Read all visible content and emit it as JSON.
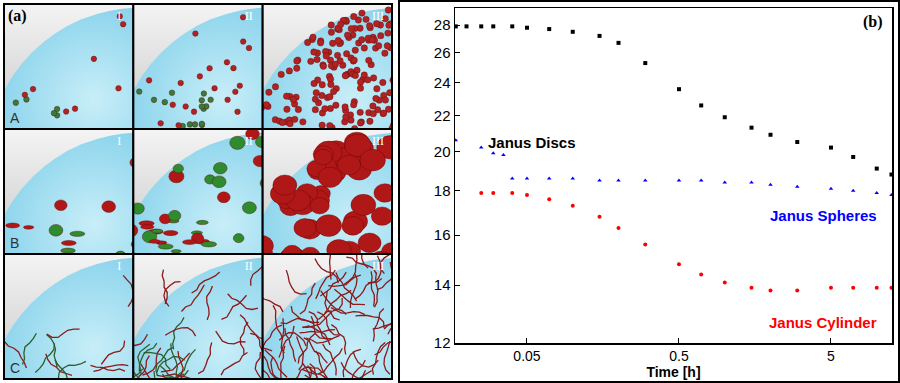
{
  "panel_a": {
    "label": "(a)",
    "rows": [
      "A",
      "B",
      "C"
    ],
    "columns": [
      "I",
      "II",
      "III"
    ]
  },
  "chart_data": {
    "type": "scatter",
    "title": "(b)",
    "x_label": "Time [h]",
    "log": true,
    "grid": false,
    "xlim": [
      0.0168,
      12.6
    ],
    "ylim": [
      12,
      29.3
    ],
    "xticks": [
      0.05,
      0.5,
      5
    ],
    "yticks": [
      12,
      14,
      16,
      18,
      20,
      22,
      24,
      26,
      28
    ],
    "series": [
      {
        "name": "Janus Discs",
        "color": "#000000",
        "marker": "square",
        "x": [
          0.017,
          0.02,
          0.025,
          0.03,
          0.04,
          0.05,
          0.07,
          0.1,
          0.15,
          0.2,
          0.3,
          0.5,
          0.7,
          1,
          1.5,
          2,
          3,
          5,
          7,
          10,
          12.5
        ],
        "values": [
          27.9,
          27.9,
          27.9,
          27.9,
          27.9,
          27.8,
          27.7,
          27.5,
          27.2,
          26.7,
          25.3,
          23.6,
          22.6,
          21.9,
          21.3,
          20.9,
          20.5,
          20.2,
          19.7,
          19.1,
          18.8
        ]
      },
      {
        "name": "Janus Spheres",
        "color": "#0000ff",
        "marker": "triangle-up",
        "x": [
          0.017,
          0.025,
          0.03,
          0.035,
          0.04,
          0.05,
          0.07,
          0.1,
          0.15,
          0.2,
          0.3,
          0.5,
          0.7,
          1,
          1.5,
          2,
          3,
          5,
          7,
          10,
          12.5
        ],
        "values": [
          20.6,
          20.2,
          19.9,
          19.8,
          18.6,
          18.6,
          18.6,
          18.6,
          18.5,
          18.5,
          18.5,
          18.5,
          18.5,
          18.4,
          18.4,
          18.3,
          18.2,
          18.1,
          18.0,
          17.9,
          17.8
        ]
      },
      {
        "name": "Janus Cylinder",
        "color": "#ff0000",
        "marker": "circle",
        "x": [
          0.025,
          0.03,
          0.04,
          0.05,
          0.07,
          0.1,
          0.15,
          0.2,
          0.3,
          0.5,
          0.7,
          1,
          1.5,
          2,
          3,
          5,
          7,
          10,
          12.5
        ],
        "values": [
          17.9,
          17.9,
          17.9,
          17.8,
          17.6,
          17.3,
          16.8,
          16.3,
          15.6,
          14.8,
          14.4,
          14.1,
          13.9,
          13.8,
          13.8,
          13.9,
          13.9,
          13.9,
          13.9
        ]
      }
    ]
  }
}
